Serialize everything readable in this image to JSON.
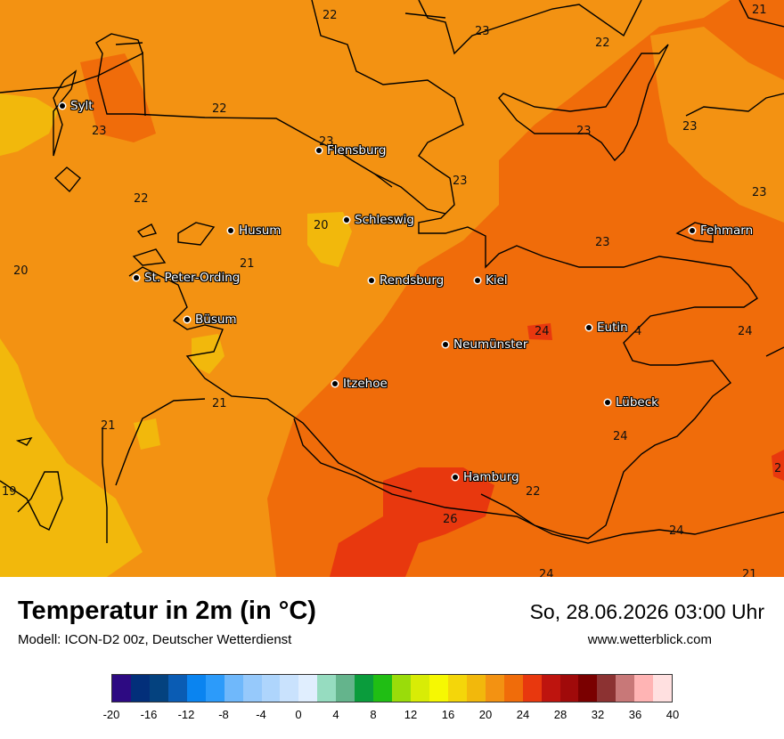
{
  "map": {
    "cities": [
      {
        "name": "Sylt"
      },
      {
        "name": "Flensburg"
      },
      {
        "name": "Husum"
      },
      {
        "name": "Schleswig"
      },
      {
        "name": "St. Peter-Ording"
      },
      {
        "name": "Rendsburg"
      },
      {
        "name": "Kiel"
      },
      {
        "name": "Fehmarn"
      },
      {
        "name": "Büsum"
      },
      {
        "name": "Eutin"
      },
      {
        "name": "Neumünster"
      },
      {
        "name": "Itzehoe"
      },
      {
        "name": "Lübeck"
      },
      {
        "name": "Hamburg"
      }
    ],
    "temperature_labels": [
      "22",
      "23",
      "21",
      "22",
      "23",
      "23",
      "22",
      "23",
      "23",
      "23",
      "22",
      "20",
      "23",
      "20",
      "21",
      "24",
      "24",
      "4",
      "21",
      "24",
      "21",
      "24",
      "2",
      "19",
      "26",
      "22",
      "24",
      "24",
      "21"
    ]
  },
  "footer": {
    "title": "Temperatur in 2m (in °C)",
    "model": "Modell: ICON-D2 00z, Deutscher Wetterdienst",
    "datetime": "So, 28.06.2026 03:00 Uhr",
    "website": "www.wetterblick.com"
  },
  "legend": {
    "colors": [
      "#2d0a82",
      "#022f7a",
      "#04427f",
      "#0a5cb4",
      "#0a84f0",
      "#2c9bfa",
      "#6fb8fb",
      "#96c9fb",
      "#aed5fc",
      "#c9e2fd",
      "#e0eefe",
      "#96dcc0",
      "#64b48c",
      "#0a9c3c",
      "#20be14",
      "#9adc0a",
      "#d8ec06",
      "#f6f802",
      "#f4d60a",
      "#f2b80c",
      "#f39212",
      "#f06c0a",
      "#e8380e",
      "#be140e",
      "#a00a0a",
      "#7a0000",
      "#8c3232",
      "#c87878",
      "#ffb4b4",
      "#ffe0e0"
    ],
    "ticks": [
      "-20",
      "-16",
      "-12",
      "-8",
      "-4",
      "0",
      "4",
      "8",
      "12",
      "16",
      "20",
      "24",
      "28",
      "32",
      "36",
      "40"
    ]
  },
  "fields": {
    "cool": "#f2b80c",
    "base": "#f39212",
    "warm": "#f06c0a",
    "hot": "#e8380e"
  }
}
